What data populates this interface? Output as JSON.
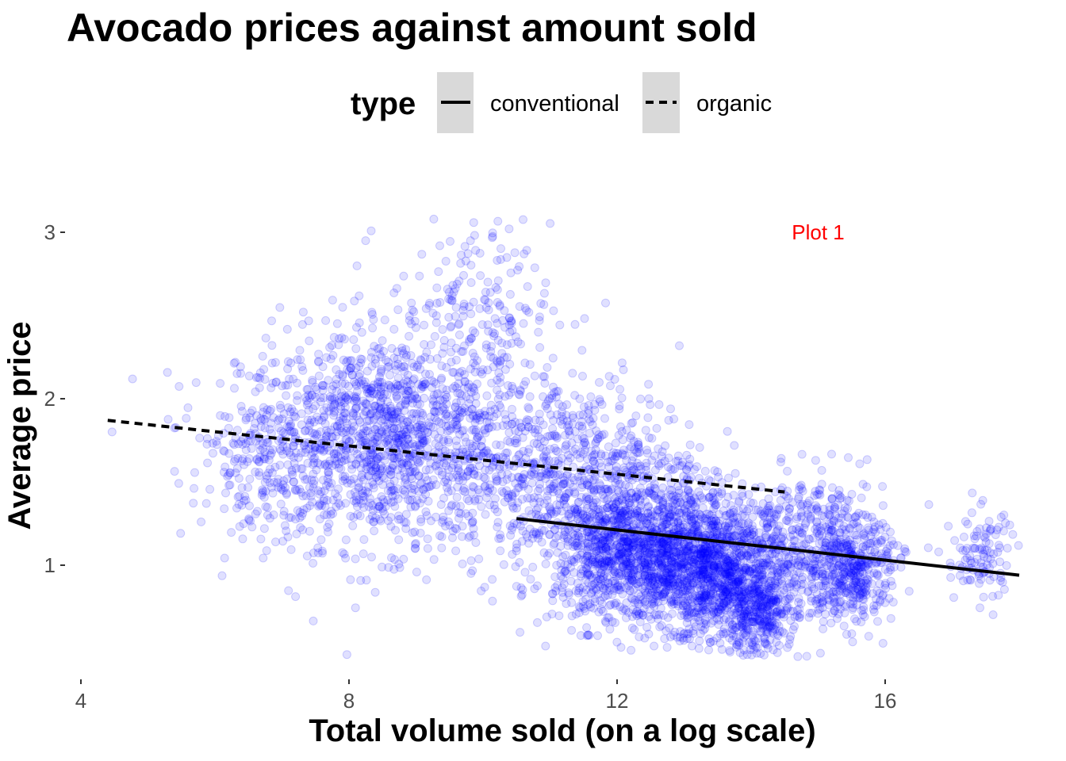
{
  "chart_data": {
    "type": "scatter",
    "title": "Avocado prices against amount sold",
    "xlabel": "Total volume sold (on a log scale)",
    "ylabel": "Average price",
    "xlim": [
      3.9,
      18.2
    ],
    "ylim": [
      0.4,
      3.25
    ],
    "x_ticks": [
      4,
      8,
      12,
      16
    ],
    "y_ticks": [
      1,
      2,
      3
    ],
    "grid": false,
    "point_color": "#0000ff",
    "point_alpha": 0.12,
    "legend": {
      "title": "type",
      "placement": "top",
      "entries": [
        {
          "label": "conventional",
          "linetype": "solid"
        },
        {
          "label": "organic",
          "linetype": "dashed"
        }
      ]
    },
    "annotation": {
      "text": "Plot 1",
      "x": 15.0,
      "y": 3.0,
      "color": "#ff0000"
    },
    "trend_lines": [
      {
        "name": "conventional",
        "linetype": "solid",
        "x": [
          10.5,
          18.0
        ],
        "y": [
          1.28,
          0.94
        ]
      },
      {
        "name": "organic",
        "linetype": "dashed",
        "x": [
          4.4,
          14.5
        ],
        "y": [
          1.87,
          1.44
        ]
      }
    ],
    "point_clusters": [
      {
        "x": 8.6,
        "y": 1.75,
        "sx": 1.1,
        "sy": 0.32,
        "n": 1500
      },
      {
        "x": 9.8,
        "y": 2.55,
        "sx": 0.6,
        "sy": 0.25,
        "n": 170
      },
      {
        "x": 11.5,
        "y": 1.5,
        "sx": 0.9,
        "sy": 0.3,
        "n": 800
      },
      {
        "x": 12.5,
        "y": 1.05,
        "sx": 0.7,
        "sy": 0.2,
        "n": 1400
      },
      {
        "x": 13.6,
        "y": 0.95,
        "sx": 0.5,
        "sy": 0.22,
        "n": 900
      },
      {
        "x": 14.1,
        "y": 0.7,
        "sx": 0.25,
        "sy": 0.12,
        "n": 250
      },
      {
        "x": 15.0,
        "y": 1.1,
        "sx": 0.5,
        "sy": 0.22,
        "n": 500
      },
      {
        "x": 15.6,
        "y": 0.95,
        "sx": 0.25,
        "sy": 0.15,
        "n": 260
      },
      {
        "x": 17.4,
        "y": 1.05,
        "sx": 0.25,
        "sy": 0.15,
        "n": 110
      },
      {
        "x": 6.8,
        "y": 1.65,
        "sx": 0.5,
        "sy": 0.22,
        "n": 180
      }
    ]
  }
}
